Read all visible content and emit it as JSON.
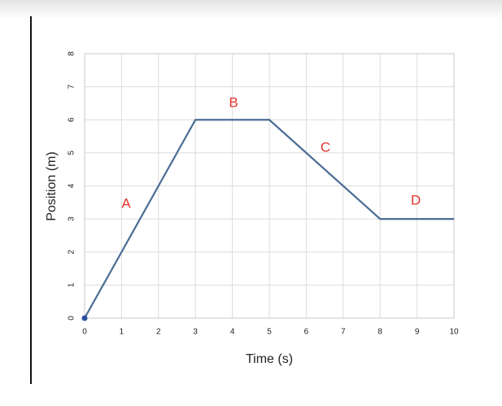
{
  "chart_data": {
    "type": "line",
    "x_label": "Time (s)",
    "y_label": "Position (m)",
    "x": [
      0,
      3,
      5,
      8,
      10
    ],
    "series": [
      {
        "color": "#4a6d94",
        "values": [
          0,
          6,
          6,
          3,
          3
        ]
      }
    ],
    "xlim": [
      0,
      10
    ],
    "xticks": [
      0,
      1,
      2,
      3,
      4,
      5,
      6,
      7,
      8,
      9,
      10
    ],
    "ylim": [
      0,
      8
    ],
    "yticks": [
      0,
      1,
      2,
      3,
      4,
      5,
      6,
      7,
      8
    ],
    "grid": true,
    "annotations": [
      "A",
      "B",
      "C",
      "D"
    ]
  }
}
